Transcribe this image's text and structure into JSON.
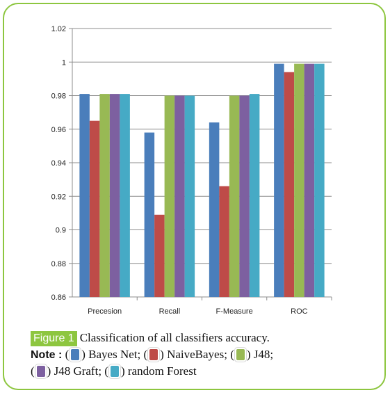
{
  "chart_data": {
    "type": "bar",
    "categories": [
      "Precesion",
      "Recall",
      "F-Measure",
      "ROC"
    ],
    "series": [
      {
        "name": "Bayes Net",
        "color": "#4a7ebb",
        "values": [
          0.981,
          0.958,
          0.964,
          0.999
        ]
      },
      {
        "name": "NaiveBayes",
        "color": "#be4b48",
        "values": [
          0.965,
          0.909,
          0.926,
          0.994
        ]
      },
      {
        "name": "J48",
        "color": "#98b954",
        "values": [
          0.981,
          0.98,
          0.98,
          0.999
        ]
      },
      {
        "name": "J48 Graft",
        "color": "#7d60a0",
        "values": [
          0.981,
          0.98,
          0.98,
          0.999
        ]
      },
      {
        "name": "random Forest",
        "color": "#46aac5",
        "values": [
          0.981,
          0.98,
          0.981,
          0.999
        ]
      }
    ],
    "ylim": [
      0.86,
      1.02
    ],
    "yticks": [
      "0.86",
      "0.88",
      "0.9",
      "0.92",
      "0.94",
      "0.96",
      "0.98",
      "1",
      "1.02"
    ],
    "grid": true
  },
  "caption": {
    "figure_tag": "Figure 1",
    "text": "Classification of all classifiers accuracy.",
    "note_label": "Note :",
    "legend": [
      {
        "open": "(",
        "close": ") Bayes Net;"
      },
      {
        "open": "(",
        "close": ") NaiveBayes;"
      },
      {
        "open": "(",
        "close": ") J48;"
      },
      {
        "open": "(",
        "close": ") J48 Graft;"
      },
      {
        "open": "(",
        "close": ") random Forest"
      }
    ]
  },
  "colors": {
    "frame": "#8dc63f",
    "gridline": "#8c8c8c"
  }
}
